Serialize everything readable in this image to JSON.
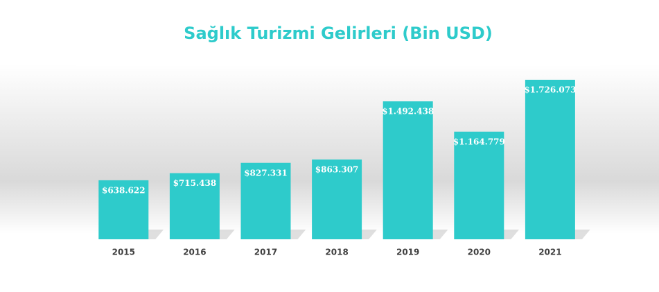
{
  "chart_data": {
    "type": "bar",
    "title": "Sağlık Turizmi Gelirleri (Bin USD)",
    "categories": [
      "2015",
      "2016",
      "2017",
      "2018",
      "2019",
      "2020",
      "2021"
    ],
    "values": [
      638622,
      715438,
      827331,
      863307,
      1492438,
      1164779,
      1726073
    ],
    "value_labels": [
      "$638.622",
      "$715.438",
      "$827.331",
      "$863.307",
      "$1.492.438",
      "$1.164.779",
      "$1.726.073"
    ],
    "color": "#2ecbcb"
  }
}
